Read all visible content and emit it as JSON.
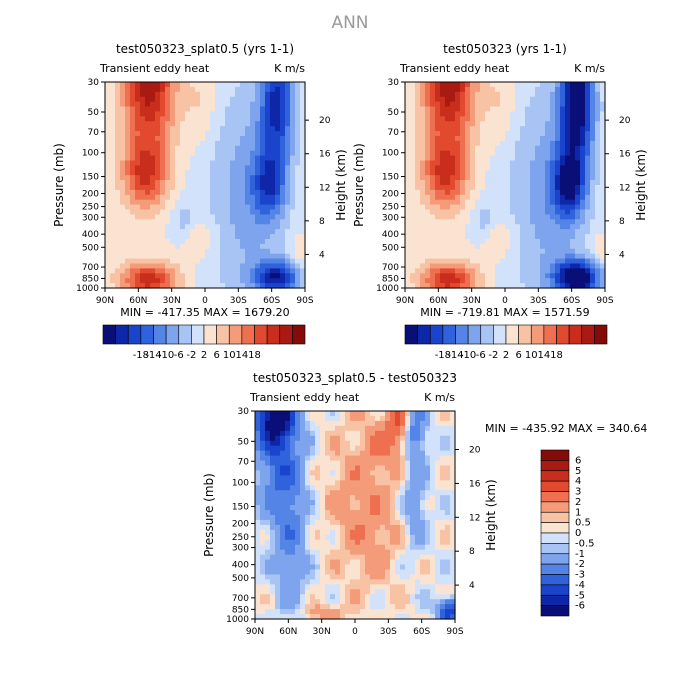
{
  "figure_title": "ANN",
  "colors": {
    "neg": [
      "#0a0f78",
      "#0e26a8",
      "#1a44cc",
      "#3062dc",
      "#5484e6",
      "#7ea4ee",
      "#a8c4f4",
      "#d2e2fa"
    ],
    "pos": [
      "#fbe3d2",
      "#f8c3a4",
      "#f49c7a",
      "#ee7050",
      "#e24a30",
      "#c92e1c",
      "#a81a12",
      "#830b08"
    ]
  },
  "chart_data": [
    {
      "type": "heatmap",
      "title": "test050323_splat0.5 (yrs 1-1)",
      "left_label": "Transient eddy heat",
      "right_label": "K m/s",
      "xlabel": "",
      "ylabel": "Pressure (mb)",
      "y2label": "Height (km)",
      "x_ticks": [
        "90N",
        "60N",
        "30N",
        "0",
        "30S",
        "60S",
        "90S"
      ],
      "y_ticks": [
        "30",
        "50",
        "70",
        "100",
        "150",
        "200",
        "250",
        "300",
        "400",
        "500",
        "700",
        "850",
        "1000"
      ],
      "y2_ticks": [
        "20",
        "16",
        "12",
        "8",
        "4"
      ],
      "min": -417.35,
      "max": 1679.2,
      "min_text": "MIN = -417.35",
      "max_text": "MAX = 1679.20",
      "colorbar": {
        "orientation": "horizontal",
        "labels": [
          "-18",
          "-14",
          "-10",
          "-6",
          "-2",
          "2",
          "6",
          "10",
          "14",
          "18"
        ]
      }
    },
    {
      "type": "heatmap",
      "title": "test050323 (yrs 1-1)",
      "left_label": "Transient eddy heat",
      "right_label": "K m/s",
      "xlabel": "",
      "ylabel": "Pressure (mb)",
      "y2label": "Height (km)",
      "x_ticks": [
        "90N",
        "60N",
        "30N",
        "0",
        "30S",
        "60S",
        "90S"
      ],
      "y_ticks": [
        "30",
        "50",
        "70",
        "100",
        "150",
        "200",
        "250",
        "300",
        "400",
        "500",
        "700",
        "850",
        "1000"
      ],
      "y2_ticks": [
        "20",
        "16",
        "12",
        "8",
        "4"
      ],
      "min": -719.81,
      "max": 1571.59,
      "min_text": "MIN = -719.81",
      "max_text": "MAX = 1571.59",
      "colorbar": {
        "orientation": "horizontal",
        "labels": [
          "-18",
          "-14",
          "-10",
          "-6",
          "-2",
          "2",
          "6",
          "10",
          "14",
          "18"
        ]
      }
    },
    {
      "type": "heatmap",
      "title": "test050323_splat0.5 - test050323",
      "left_label": "Transient eddy heat",
      "right_label": "K m/s",
      "xlabel": "",
      "ylabel": "Pressure (mb)",
      "y2label": "Height (km)",
      "x_ticks": [
        "90N",
        "60N",
        "30N",
        "0",
        "30S",
        "60S",
        "90S"
      ],
      "y_ticks": [
        "30",
        "50",
        "70",
        "100",
        "150",
        "200",
        "250",
        "300",
        "400",
        "500",
        "700",
        "850",
        "1000"
      ],
      "y2_ticks": [
        "20",
        "16",
        "12",
        "8",
        "4"
      ],
      "min": -435.92,
      "max": 340.64,
      "min_text": "MIN = -435.92",
      "max_text": "MAX = 340.64",
      "colorbar": {
        "orientation": "vertical",
        "labels": [
          "6",
          "5",
          "4",
          "3",
          "2",
          "1",
          "0.5",
          "0",
          "-0.5",
          "-1",
          "-2",
          "-3",
          "-4",
          "-5",
          "-6"
        ]
      }
    }
  ]
}
